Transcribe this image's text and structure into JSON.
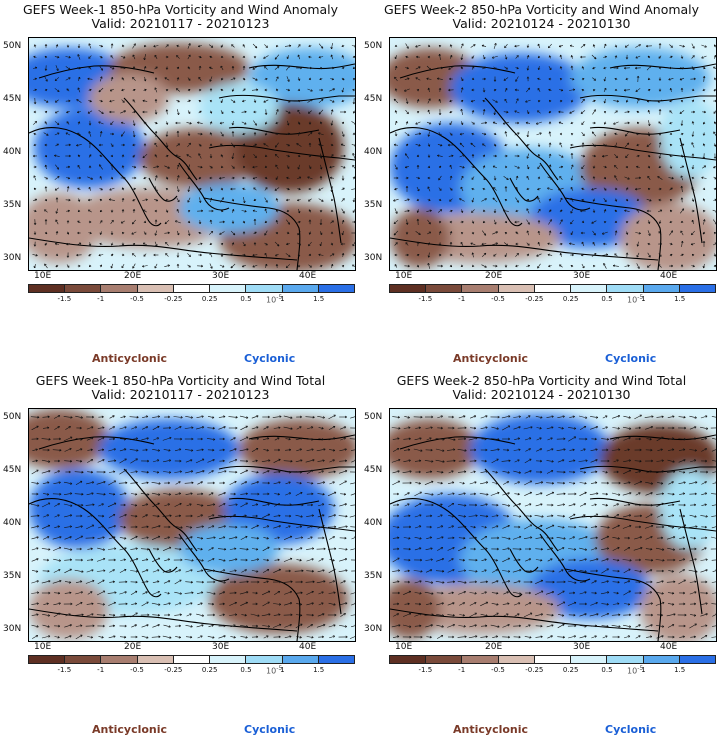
{
  "colors": {
    "anticyclonic_dark": "#6b3a2a",
    "anticyclonic_mid": "#8a5a4a",
    "anticyclonic_light": "#b8958a",
    "anticyclonic_pale": "#e6d2c8",
    "neutral": "#ffffff",
    "cyclonic_pale": "#d8f3fb",
    "cyclonic_light": "#a9e3f7",
    "cyclonic_mid": "#5fb0ee",
    "cyclonic_dark": "#2a6fe6",
    "arrow": "#111111",
    "coast": "#000000"
  },
  "colorbar": {
    "ticks": [
      "-1.5",
      "-1",
      "-0.5",
      "-0.25",
      "0.25",
      "0.5",
      "1",
      "1.5"
    ],
    "unit_label": "10",
    "unit_superscript": "-5",
    "segment_colors": [
      "#5e2f22",
      "#7a4a3a",
      "#a87e70",
      "#d9bfb3",
      "#ffffff",
      "#d8f3fb",
      "#9fdcf6",
      "#5aa9ee",
      "#2a6fe6"
    ]
  },
  "axes": {
    "y_ticks": [
      "50N",
      "45N",
      "40N",
      "35N",
      "30N"
    ],
    "x_ticks": [
      "10E",
      "20E",
      "30E",
      "40E"
    ]
  },
  "legend": {
    "anticyclonic": "Anticyclonic",
    "cyclonic": "Cyclonic"
  },
  "panels": [
    {
      "id": "week1-anomaly",
      "title_line1": "GEFS Week-1 850-hPa Vorticity and Wind Anomaly",
      "title_line2": "Valid: 20210117 - 20210123"
    },
    {
      "id": "week2-anomaly",
      "title_line1": "GEFS Week-2 850-hPa Vorticity and Wind Anomaly",
      "title_line2": "Valid: 20210124 - 20210130"
    },
    {
      "id": "week1-total",
      "title_line1": "GEFS Week-1 850-hPa Vorticity and Wind Total",
      "title_line2": "Valid: 20210117 - 20210123"
    },
    {
      "id": "week2-total",
      "title_line1": "GEFS Week-2 850-hPa Vorticity and Wind Total",
      "title_line2": "Valid: 20210124 - 20210130"
    }
  ]
}
